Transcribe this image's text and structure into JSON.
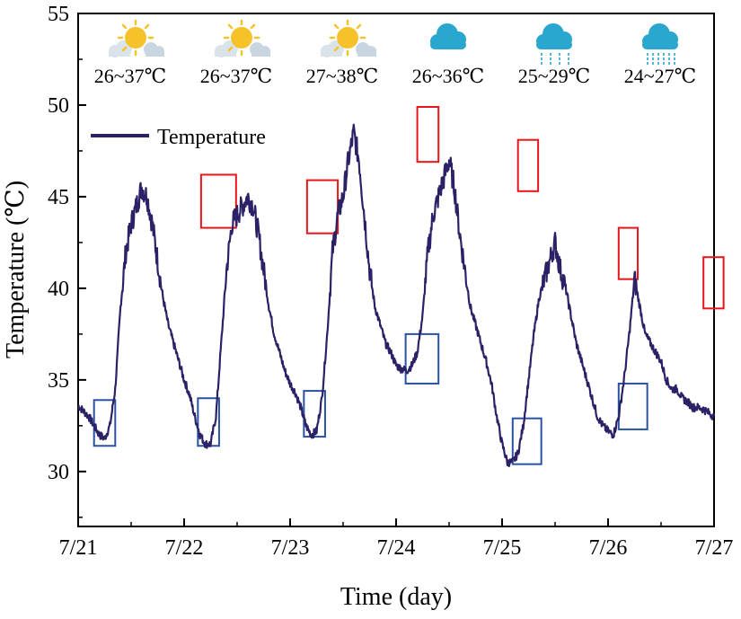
{
  "chart_data": {
    "type": "line",
    "title": "",
    "xlabel": "Time (day)",
    "ylabel": "Temperature (℃)",
    "xlim": [
      0,
      6
    ],
    "ylim": [
      27,
      55
    ],
    "x_ticks": [
      0,
      1,
      2,
      3,
      4,
      5,
      6
    ],
    "x_tick_labels": [
      "7/21",
      "7/22",
      "7/23",
      "7/24",
      "7/25",
      "7/26",
      "7/27"
    ],
    "y_ticks": [
      30,
      35,
      40,
      45,
      50,
      55
    ],
    "y_tick_labels": [
      "30",
      "35",
      "40",
      "45",
      "50",
      "55"
    ],
    "grid": false,
    "legend": {
      "position": "top-left",
      "entries": [
        "Temperature"
      ]
    },
    "series": [
      {
        "name": "Temperature",
        "color": "#2b2166",
        "x": [
          0.0,
          0.05,
          0.1,
          0.15,
          0.2,
          0.25,
          0.3,
          0.35,
          0.4,
          0.45,
          0.5,
          0.55,
          0.6,
          0.65,
          0.7,
          0.75,
          0.8,
          0.85,
          0.9,
          0.95,
          1.0,
          1.05,
          1.1,
          1.15,
          1.2,
          1.25,
          1.3,
          1.35,
          1.4,
          1.45,
          1.5,
          1.55,
          1.6,
          1.65,
          1.7,
          1.75,
          1.8,
          1.85,
          1.9,
          1.95,
          2.0,
          2.05,
          2.1,
          2.15,
          2.2,
          2.25,
          2.3,
          2.35,
          2.4,
          2.45,
          2.5,
          2.55,
          2.6,
          2.65,
          2.7,
          2.75,
          2.8,
          2.85,
          2.9,
          2.95,
          3.0,
          3.05,
          3.1,
          3.15,
          3.2,
          3.25,
          3.3,
          3.35,
          3.4,
          3.45,
          3.5,
          3.55,
          3.6,
          3.65,
          3.7,
          3.75,
          3.8,
          3.85,
          3.9,
          3.95,
          4.0,
          4.05,
          4.1,
          4.15,
          4.2,
          4.25,
          4.3,
          4.35,
          4.4,
          4.45,
          4.5,
          4.55,
          4.6,
          4.65,
          4.7,
          4.75,
          4.8,
          4.85,
          4.9,
          4.95,
          5.0,
          5.05,
          5.1,
          5.15,
          5.2,
          5.25,
          5.3,
          5.35,
          5.4,
          5.45,
          5.5,
          5.55,
          5.6,
          5.65,
          5.7,
          5.75,
          5.8,
          5.85,
          5.9,
          5.95,
          6.0
        ],
        "values": [
          33.6,
          33.3,
          33.0,
          32.5,
          32.0,
          31.8,
          32.5,
          34.5,
          39.0,
          42.0,
          43.5,
          44.5,
          45.5,
          45.0,
          43.5,
          41.5,
          39.5,
          38.0,
          37.0,
          36.0,
          35.0,
          34.2,
          33.0,
          32.0,
          31.5,
          31.5,
          33.0,
          37.0,
          41.0,
          43.5,
          44.0,
          44.5,
          45.0,
          44.5,
          43.0,
          41.0,
          39.0,
          37.5,
          36.5,
          35.5,
          34.8,
          34.3,
          33.5,
          32.5,
          32.0,
          32.2,
          34.0,
          37.5,
          42.0,
          44.0,
          45.0,
          47.0,
          48.5,
          47.0,
          44.0,
          41.0,
          39.0,
          38.0,
          37.0,
          36.5,
          35.8,
          35.6,
          35.5,
          35.8,
          36.5,
          38.5,
          42.0,
          44.0,
          45.0,
          46.0,
          47.0,
          45.5,
          43.0,
          41.0,
          39.0,
          38.0,
          37.0,
          36.0,
          34.8,
          33.0,
          31.5,
          30.5,
          30.5,
          31.0,
          32.5,
          35.0,
          37.5,
          39.5,
          40.5,
          41.5,
          42.5,
          41.0,
          40.0,
          38.5,
          37.0,
          36.0,
          35.0,
          34.0,
          33.0,
          32.5,
          32.2,
          32.0,
          33.0,
          35.0,
          37.5,
          40.5,
          39.0,
          37.5,
          37.0,
          36.5,
          36.0,
          35.0,
          34.5,
          34.5,
          34.0,
          33.8,
          33.5,
          33.5,
          33.4,
          33.2,
          33.0
        ]
      }
    ],
    "annotations": {
      "peak_boxes": [
        {
          "x": [
            1.16,
            1.49
          ],
          "y": [
            43.3,
            46.2
          ]
        },
        {
          "x": [
            2.16,
            2.45
          ],
          "y": [
            43.0,
            45.9
          ]
        },
        {
          "x": [
            3.2,
            3.4
          ],
          "y": [
            46.9,
            49.9
          ]
        },
        {
          "x": [
            4.15,
            4.34
          ],
          "y": [
            45.3,
            48.1
          ]
        },
        {
          "x": [
            5.1,
            5.28
          ],
          "y": [
            40.5,
            43.3
          ]
        },
        {
          "x": [
            5.9,
            6.09
          ],
          "y": [
            38.9,
            41.7
          ]
        }
      ],
      "trough_boxes": [
        {
          "x": [
            0.15,
            0.35
          ],
          "y": [
            31.4,
            33.9
          ]
        },
        {
          "x": [
            1.13,
            1.33
          ],
          "y": [
            31.4,
            34.0
          ]
        },
        {
          "x": [
            2.13,
            2.33
          ],
          "y": [
            31.9,
            34.4
          ]
        },
        {
          "x": [
            3.09,
            3.4
          ],
          "y": [
            34.8,
            37.5
          ]
        },
        {
          "x": [
            4.1,
            4.37
          ],
          "y": [
            30.4,
            32.9
          ]
        },
        {
          "x": [
            5.1,
            5.37
          ],
          "y": [
            32.3,
            34.8
          ]
        }
      ]
    }
  },
  "colors": {
    "line": "#2b2166",
    "peak_box": "#e8161b",
    "trough_box": "#2a52a3",
    "sun": "#f6c22a",
    "cloud": "#29a7cf",
    "light_cloud": "#c9d6e2"
  },
  "weather": [
    {
      "icon": "sunny-partly-cloudy-icon",
      "label": "26~37℃"
    },
    {
      "icon": "sunny-partly-cloudy-icon",
      "label": "26~37℃"
    },
    {
      "icon": "sunny-partly-cloudy-icon",
      "label": "27~38℃"
    },
    {
      "icon": "cloudy-icon",
      "label": "26~36℃"
    },
    {
      "icon": "light-rain-icon",
      "label": "25~29℃"
    },
    {
      "icon": "moderate-rain-icon",
      "label": "24~27℃"
    }
  ]
}
